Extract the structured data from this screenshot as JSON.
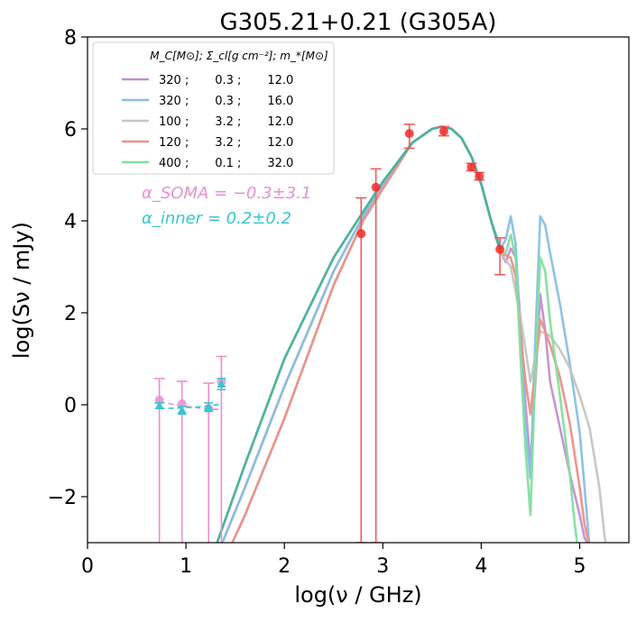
{
  "chart_data": {
    "type": "line",
    "title": "G305.21+0.21 (G305A)",
    "xlabel": "log(ν / GHz)",
    "ylabel": "log(Sν / mJy)",
    "xlim": [
      0,
      5.5
    ],
    "ylim": [
      -3,
      8
    ],
    "xticks": [
      0,
      1,
      2,
      3,
      4,
      5
    ],
    "yticks": [
      -2,
      0,
      2,
      4,
      6,
      8
    ],
    "xtick_labels": [
      "0",
      "1",
      "2",
      "3",
      "4",
      "5"
    ],
    "ytick_labels": [
      "−2",
      "0",
      "2",
      "4",
      "6",
      "8"
    ],
    "legend": {
      "header": "M_C[M⊙]; Σ_cl[g cm⁻²]; m_*[M⊙]",
      "placement": "top-left",
      "entries": [
        {
          "label": "320 ;       0.3 ;       12.0",
          "color": "#c38fd1"
        },
        {
          "label": "320 ;       0.3 ;       16.0",
          "color": "#88bfe3"
        },
        {
          "label": "100 ;       3.2 ;       12.0",
          "color": "#c3c6c4"
        },
        {
          "label": "120 ;       3.2 ;       12.0",
          "color": "#ec9087"
        },
        {
          "label": "400 ;       0.1 ;       32.0",
          "color": "#83de9f"
        }
      ]
    },
    "annotations": [
      {
        "text": "α_SOMA = −0.3±3.1",
        "color": "#e98fd0"
      },
      {
        "text": "α_inner = 0.2±0.2",
        "color": "#39c6d0"
      }
    ],
    "series": [
      {
        "name": "320 ; 0.3 ; 12.0",
        "color": "#c38fd1",
        "x": [
          1.35,
          1.6,
          2.0,
          2.5,
          2.8,
          3.0,
          3.3,
          3.5,
          3.6,
          3.7,
          3.8,
          3.9,
          4.0,
          4.1,
          4.2,
          4.25,
          4.3,
          4.35,
          4.4,
          4.45,
          4.5,
          4.55,
          4.6,
          4.65,
          4.7,
          4.8,
          4.9,
          5.0,
          5.05,
          5.1
        ],
        "y": [
          -3.1,
          -1.8,
          0.4,
          2.9,
          4.1,
          4.8,
          5.7,
          6.0,
          6.05,
          6.0,
          5.8,
          5.4,
          4.8,
          4.0,
          3.3,
          3.1,
          3.4,
          3.2,
          1.8,
          0.0,
          -1.3,
          0.5,
          2.4,
          1.6,
          0.5,
          -0.5,
          -1.5,
          -2.4,
          -2.9,
          -3.1
        ]
      },
      {
        "name": "320 ; 0.3 ; 16.0",
        "color": "#88bfe3",
        "x": [
          1.35,
          1.6,
          2.0,
          2.5,
          2.8,
          3.0,
          3.3,
          3.5,
          3.6,
          3.7,
          3.8,
          3.9,
          4.0,
          4.1,
          4.2,
          4.25,
          4.3,
          4.35,
          4.4,
          4.45,
          4.5,
          4.55,
          4.6,
          4.65,
          4.7,
          4.8,
          4.9,
          5.0,
          5.05,
          5.1
        ],
        "y": [
          -3.1,
          -1.8,
          0.4,
          2.9,
          4.1,
          4.8,
          5.7,
          6.0,
          6.05,
          6.0,
          5.8,
          5.4,
          4.8,
          4.0,
          3.4,
          3.6,
          4.1,
          3.5,
          1.5,
          -0.5,
          -1.6,
          1.5,
          4.1,
          3.9,
          3.3,
          2.2,
          0.9,
          -0.6,
          -1.8,
          -3.1
        ]
      },
      {
        "name": "100 ; 3.2 ; 12.0",
        "color": "#c3c6c4",
        "x": [
          1.45,
          1.6,
          2.0,
          2.5,
          2.8,
          3.0,
          3.3,
          3.5,
          3.6,
          3.7,
          3.8,
          3.9,
          4.0,
          4.1,
          4.2,
          4.3,
          4.4,
          4.5,
          4.6,
          4.7,
          4.8,
          4.9,
          5.0,
          5.1,
          5.2,
          5.25,
          5.27
        ],
        "y": [
          -3.1,
          -2.4,
          -0.3,
          2.6,
          4.0,
          4.7,
          5.7,
          6.0,
          6.05,
          6.0,
          5.8,
          5.4,
          4.8,
          4.0,
          3.3,
          3.0,
          1.9,
          0.5,
          1.6,
          1.5,
          1.2,
          0.8,
          0.2,
          -0.5,
          -1.8,
          -2.8,
          -3.1
        ]
      },
      {
        "name": "120 ; 3.2 ; 12.0",
        "color": "#ec9087",
        "x": [
          1.45,
          1.6,
          2.0,
          2.5,
          2.8,
          3.0,
          3.3,
          3.5,
          3.6,
          3.7,
          3.8,
          3.9,
          4.0,
          4.1,
          4.2,
          4.3,
          4.35,
          4.4,
          4.45,
          4.5,
          4.55,
          4.6,
          4.65,
          4.7,
          4.8,
          4.9,
          5.0,
          5.05,
          5.1
        ],
        "y": [
          -3.1,
          -2.4,
          -0.3,
          2.6,
          4.0,
          4.7,
          5.7,
          6.0,
          6.05,
          6.0,
          5.8,
          5.4,
          4.8,
          4.0,
          3.3,
          3.2,
          2.8,
          1.5,
          0.5,
          -0.2,
          0.8,
          1.85,
          1.6,
          1.3,
          0.6,
          -0.4,
          -1.8,
          -2.6,
          -3.1
        ]
      },
      {
        "name": "400 ; 0.1 ; 32.0",
        "color": "#83de9f",
        "x": [
          1.3,
          1.6,
          2.0,
          2.5,
          2.8,
          3.0,
          3.3,
          3.5,
          3.6,
          3.7,
          3.8,
          3.9,
          4.0,
          4.1,
          4.2,
          4.25,
          4.3,
          4.35,
          4.4,
          4.45,
          4.5,
          4.55,
          4.6,
          4.65,
          4.7,
          4.8,
          4.9,
          4.95,
          4.98
        ],
        "y": [
          -3.1,
          -1.3,
          1.0,
          3.2,
          4.2,
          4.85,
          5.7,
          6.0,
          6.05,
          6.0,
          5.8,
          5.4,
          4.8,
          4.0,
          3.3,
          3.3,
          3.7,
          3.2,
          1.0,
          -1.0,
          -2.4,
          0.8,
          3.2,
          2.9,
          1.8,
          0.2,
          -1.5,
          -2.6,
          -3.1
        ]
      },
      {
        "name": "fit-teal",
        "color": "#4aaf9e",
        "x": [
          1.3,
          1.6,
          2.0,
          2.5,
          2.8,
          3.0,
          3.3,
          3.5,
          3.6,
          3.7,
          3.8,
          3.9,
          4.0,
          4.1,
          4.2
        ],
        "y": [
          -3.1,
          -1.3,
          1.0,
          3.2,
          4.2,
          4.85,
          5.7,
          6.0,
          6.05,
          6.0,
          5.8,
          5.4,
          4.8,
          4.0,
          3.3
        ]
      }
    ],
    "observations": [
      {
        "x": 2.78,
        "y": 3.72,
        "yerr_low": 6.72,
        "yerr_high": 0.78
      },
      {
        "x": 2.93,
        "y": 4.73,
        "yerr_low": 7.73,
        "yerr_high": 0.4
      },
      {
        "x": 3.27,
        "y": 5.9,
        "yerr_low": 0.32,
        "yerr_high": 0.2
      },
      {
        "x": 3.62,
        "y": 5.95,
        "yerr_low": 0.1,
        "yerr_high": 0.1
      },
      {
        "x": 3.9,
        "y": 5.17,
        "yerr_low": 0.08,
        "yerr_high": 0.08
      },
      {
        "x": 3.98,
        "y": 4.97,
        "yerr_low": 0.08,
        "yerr_high": 0.08
      },
      {
        "x": 4.19,
        "y": 3.38,
        "yerr_low": 0.55,
        "yerr_high": 0.25
      }
    ],
    "radio_soma": {
      "color": "#e98fd0",
      "x": [
        0.73,
        0.96,
        1.23,
        1.36
      ],
      "y": [
        0.1,
        0.02,
        -0.08,
        0.5
      ],
      "upper": [
        0.57,
        0.51,
        0.47,
        1.05
      ],
      "trend": [
        0.06,
        -0.02,
        -0.1,
        -0.1
      ]
    },
    "radio_inner": {
      "color": "#39c6d0",
      "x": [
        0.73,
        0.96,
        1.23,
        1.36
      ],
      "y": [
        -0.02,
        -0.12,
        -0.05,
        0.45
      ],
      "errs": [
        0.06,
        0.08,
        0.09,
        0.12
      ],
      "trend": [
        -0.08,
        -0.07,
        -0.03,
        0.02
      ]
    }
  }
}
